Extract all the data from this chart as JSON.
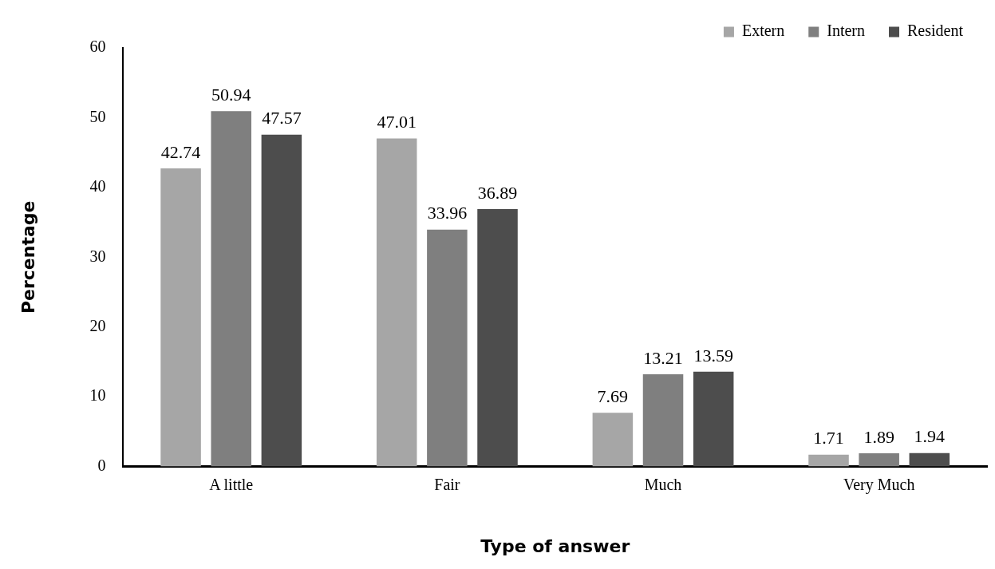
{
  "chart_data": {
    "type": "bar",
    "xlabel": "Type of answer",
    "ylabel": "Percentage",
    "categories": [
      "A little",
      "Fair",
      "Much",
      "Very Much"
    ],
    "series": [
      {
        "name": "Extern",
        "color": "#a6a6a6",
        "values": [
          42.74,
          47.01,
          7.69,
          1.71
        ]
      },
      {
        "name": "Intern",
        "color": "#7f7f7f",
        "values": [
          50.94,
          33.96,
          13.21,
          1.89
        ]
      },
      {
        "name": "Resident",
        "color": "#4d4d4d",
        "values": [
          47.57,
          36.89,
          13.59,
          1.94
        ]
      }
    ],
    "ylim": [
      0,
      60
    ],
    "yticks": [
      0,
      10,
      20,
      30,
      40,
      50,
      60
    ],
    "grid": false,
    "legend": "top right",
    "data_labels": true
  }
}
